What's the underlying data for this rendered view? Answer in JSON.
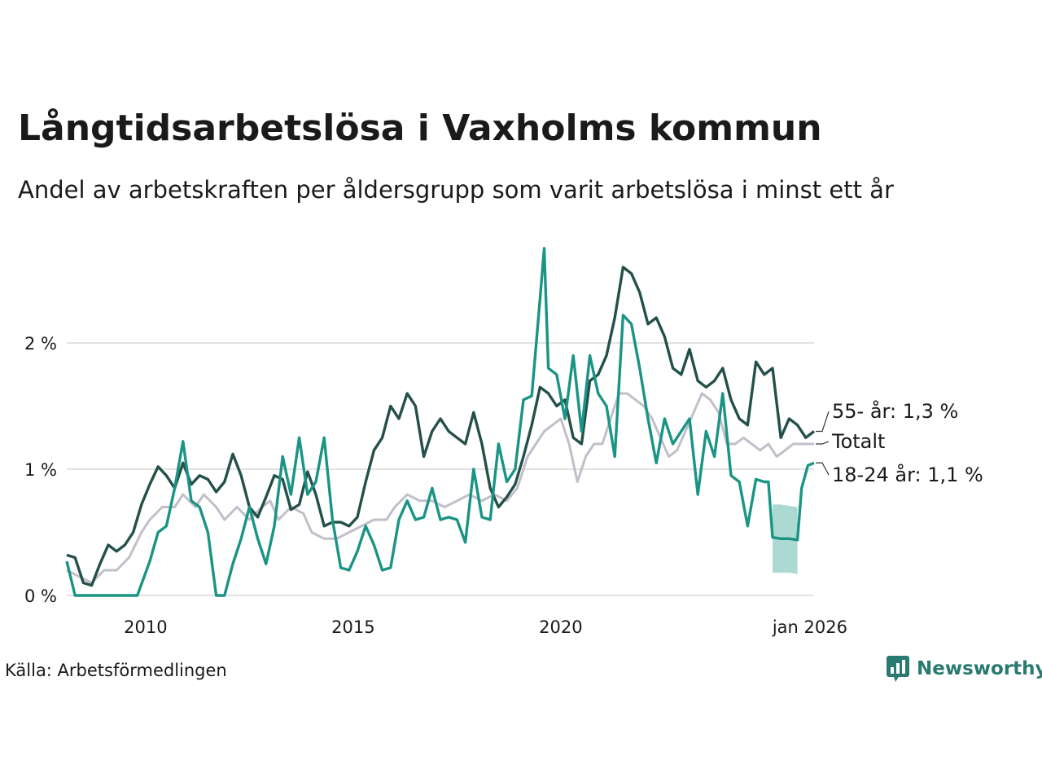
{
  "header": {
    "title": "Långtidsarbetslösa i Vaxholms kommun",
    "subtitle": "Andel av arbetskraften per åldersgrupp som varit arbetslösa i minst ett år"
  },
  "footer": {
    "source": "Källa: Arbetsförmedlingen",
    "brand": "Newsworthy"
  },
  "colors": {
    "older": "#24504a",
    "young": "#1a9484",
    "total": "#c2bfca",
    "band": "#a8d8d0",
    "grid": "#e2e2e2",
    "brand": "#2a7a72"
  },
  "chart_data": {
    "type": "line",
    "title": "Långtidsarbetslösa i Vaxholms kommun",
    "ylim": [
      0,
      2.8
    ],
    "xlim": [
      2008.1,
      2026.1
    ],
    "y_ticks": [
      {
        "value": 0,
        "label": "0 %"
      },
      {
        "value": 1,
        "label": "1 %"
      },
      {
        "value": 2,
        "label": "2 %"
      }
    ],
    "x_ticks": [
      {
        "value": 2010,
        "label": "2010"
      },
      {
        "value": 2015,
        "label": "2015"
      },
      {
        "value": 2020,
        "label": "2020"
      },
      {
        "value": 2026,
        "label": "jan 2026"
      }
    ],
    "series": [
      {
        "name": "Totalt",
        "end_label": "Totalt",
        "color_key": "total",
        "points": [
          [
            2008.1,
            0.2
          ],
          [
            2008.4,
            0.15
          ],
          [
            2008.7,
            0.1
          ],
          [
            2009.0,
            0.2
          ],
          [
            2009.3,
            0.2
          ],
          [
            2009.6,
            0.3
          ],
          [
            2009.9,
            0.5
          ],
          [
            2010.1,
            0.6
          ],
          [
            2010.4,
            0.7
          ],
          [
            2010.7,
            0.7
          ],
          [
            2010.9,
            0.8
          ],
          [
            2011.2,
            0.7
          ],
          [
            2011.4,
            0.8
          ],
          [
            2011.7,
            0.7
          ],
          [
            2011.9,
            0.6
          ],
          [
            2012.2,
            0.7
          ],
          [
            2012.5,
            0.6
          ],
          [
            2012.8,
            0.7
          ],
          [
            2013.0,
            0.75
          ],
          [
            2013.2,
            0.6
          ],
          [
            2013.5,
            0.7
          ],
          [
            2013.8,
            0.65
          ],
          [
            2014.0,
            0.5
          ],
          [
            2014.3,
            0.45
          ],
          [
            2014.6,
            0.45
          ],
          [
            2014.9,
            0.5
          ],
          [
            2015.2,
            0.55
          ],
          [
            2015.5,
            0.6
          ],
          [
            2015.8,
            0.6
          ],
          [
            2016.0,
            0.7
          ],
          [
            2016.3,
            0.8
          ],
          [
            2016.6,
            0.75
          ],
          [
            2016.9,
            0.75
          ],
          [
            2017.2,
            0.7
          ],
          [
            2017.5,
            0.75
          ],
          [
            2017.8,
            0.8
          ],
          [
            2018.1,
            0.75
          ],
          [
            2018.4,
            0.8
          ],
          [
            2018.7,
            0.75
          ],
          [
            2018.95,
            0.85
          ],
          [
            2019.2,
            1.1
          ],
          [
            2019.4,
            1.2
          ],
          [
            2019.6,
            1.3
          ],
          [
            2019.8,
            1.35
          ],
          [
            2020.0,
            1.4
          ],
          [
            2020.2,
            1.2
          ],
          [
            2020.4,
            0.9
          ],
          [
            2020.6,
            1.1
          ],
          [
            2020.8,
            1.2
          ],
          [
            2021.0,
            1.2
          ],
          [
            2021.2,
            1.4
          ],
          [
            2021.4,
            1.6
          ],
          [
            2021.6,
            1.6
          ],
          [
            2021.8,
            1.55
          ],
          [
            2022.0,
            1.5
          ],
          [
            2022.2,
            1.4
          ],
          [
            2022.4,
            1.25
          ],
          [
            2022.6,
            1.1
          ],
          [
            2022.8,
            1.15
          ],
          [
            2023.0,
            1.3
          ],
          [
            2023.2,
            1.45
          ],
          [
            2023.4,
            1.6
          ],
          [
            2023.6,
            1.55
          ],
          [
            2023.8,
            1.45
          ],
          [
            2024.0,
            1.2
          ],
          [
            2024.2,
            1.2
          ],
          [
            2024.4,
            1.25
          ],
          [
            2024.6,
            1.2
          ],
          [
            2024.8,
            1.15
          ],
          [
            2025.0,
            1.2
          ],
          [
            2025.2,
            1.1
          ],
          [
            2025.4,
            1.15
          ],
          [
            2025.6,
            1.2
          ],
          [
            2025.8,
            1.2
          ],
          [
            2026.0,
            1.2
          ],
          [
            2026.1,
            1.2
          ]
        ]
      },
      {
        "name": "55- år",
        "end_label": "55- år: 1,3 %",
        "color_key": "older",
        "points": [
          [
            2008.1,
            0.32
          ],
          [
            2008.3,
            0.3
          ],
          [
            2008.5,
            0.1
          ],
          [
            2008.7,
            0.08
          ],
          [
            2008.9,
            0.25
          ],
          [
            2009.1,
            0.4
          ],
          [
            2009.3,
            0.35
          ],
          [
            2009.5,
            0.4
          ],
          [
            2009.7,
            0.5
          ],
          [
            2009.9,
            0.72
          ],
          [
            2010.1,
            0.88
          ],
          [
            2010.3,
            1.02
          ],
          [
            2010.5,
            0.95
          ],
          [
            2010.7,
            0.85
          ],
          [
            2010.9,
            1.05
          ],
          [
            2011.1,
            0.88
          ],
          [
            2011.3,
            0.95
          ],
          [
            2011.5,
            0.92
          ],
          [
            2011.7,
            0.82
          ],
          [
            2011.9,
            0.9
          ],
          [
            2012.1,
            1.12
          ],
          [
            2012.3,
            0.95
          ],
          [
            2012.5,
            0.7
          ],
          [
            2012.7,
            0.62
          ],
          [
            2012.9,
            0.78
          ],
          [
            2013.1,
            0.95
          ],
          [
            2013.3,
            0.92
          ],
          [
            2013.5,
            0.68
          ],
          [
            2013.7,
            0.72
          ],
          [
            2013.9,
            0.98
          ],
          [
            2014.1,
            0.8
          ],
          [
            2014.3,
            0.55
          ],
          [
            2014.5,
            0.58
          ],
          [
            2014.7,
            0.58
          ],
          [
            2014.9,
            0.55
          ],
          [
            2015.1,
            0.62
          ],
          [
            2015.3,
            0.9
          ],
          [
            2015.5,
            1.15
          ],
          [
            2015.7,
            1.25
          ],
          [
            2015.9,
            1.5
          ],
          [
            2016.1,
            1.4
          ],
          [
            2016.3,
            1.6
          ],
          [
            2016.5,
            1.5
          ],
          [
            2016.7,
            1.1
          ],
          [
            2016.9,
            1.3
          ],
          [
            2017.1,
            1.4
          ],
          [
            2017.3,
            1.3
          ],
          [
            2017.5,
            1.25
          ],
          [
            2017.7,
            1.2
          ],
          [
            2017.9,
            1.45
          ],
          [
            2018.1,
            1.2
          ],
          [
            2018.3,
            0.85
          ],
          [
            2018.5,
            0.7
          ],
          [
            2018.7,
            0.78
          ],
          [
            2018.9,
            0.88
          ],
          [
            2019.1,
            1.1
          ],
          [
            2019.3,
            1.35
          ],
          [
            2019.5,
            1.65
          ],
          [
            2019.7,
            1.6
          ],
          [
            2019.9,
            1.5
          ],
          [
            2020.1,
            1.55
          ],
          [
            2020.3,
            1.25
          ],
          [
            2020.5,
            1.2
          ],
          [
            2020.7,
            1.7
          ],
          [
            2020.9,
            1.75
          ],
          [
            2021.1,
            1.9
          ],
          [
            2021.3,
            2.2
          ],
          [
            2021.5,
            2.6
          ],
          [
            2021.7,
            2.55
          ],
          [
            2021.9,
            2.4
          ],
          [
            2022.1,
            2.15
          ],
          [
            2022.3,
            2.2
          ],
          [
            2022.5,
            2.05
          ],
          [
            2022.7,
            1.8
          ],
          [
            2022.9,
            1.75
          ],
          [
            2023.1,
            1.95
          ],
          [
            2023.3,
            1.7
          ],
          [
            2023.5,
            1.65
          ],
          [
            2023.7,
            1.7
          ],
          [
            2023.9,
            1.8
          ],
          [
            2024.1,
            1.55
          ],
          [
            2024.3,
            1.4
          ],
          [
            2024.5,
            1.35
          ],
          [
            2024.7,
            1.85
          ],
          [
            2024.9,
            1.75
          ],
          [
            2025.1,
            1.8
          ],
          [
            2025.3,
            1.25
          ],
          [
            2025.5,
            1.4
          ],
          [
            2025.7,
            1.35
          ],
          [
            2025.9,
            1.25
          ],
          [
            2026.1,
            1.3
          ]
        ]
      },
      {
        "name": "18-24 år",
        "end_label": "18-24 år: 1,1 %",
        "color_key": "young",
        "points": [
          [
            2008.1,
            0.27
          ],
          [
            2008.3,
            0.0
          ],
          [
            2008.6,
            0.0
          ],
          [
            2008.9,
            0.0
          ],
          [
            2009.2,
            0.0
          ],
          [
            2009.5,
            0.0
          ],
          [
            2009.8,
            0.0
          ],
          [
            2010.1,
            0.27
          ],
          [
            2010.3,
            0.5
          ],
          [
            2010.5,
            0.55
          ],
          [
            2010.7,
            0.85
          ],
          [
            2010.9,
            1.22
          ],
          [
            2011.1,
            0.75
          ],
          [
            2011.3,
            0.7
          ],
          [
            2011.5,
            0.5
          ],
          [
            2011.7,
            0.0
          ],
          [
            2011.9,
            0.0
          ],
          [
            2012.1,
            0.25
          ],
          [
            2012.3,
            0.45
          ],
          [
            2012.5,
            0.7
          ],
          [
            2012.7,
            0.45
          ],
          [
            2012.9,
            0.25
          ],
          [
            2013.1,
            0.55
          ],
          [
            2013.3,
            1.1
          ],
          [
            2013.5,
            0.8
          ],
          [
            2013.7,
            1.25
          ],
          [
            2013.9,
            0.8
          ],
          [
            2014.1,
            0.9
          ],
          [
            2014.3,
            1.25
          ],
          [
            2014.5,
            0.6
          ],
          [
            2014.7,
            0.22
          ],
          [
            2014.9,
            0.2
          ],
          [
            2015.1,
            0.35
          ],
          [
            2015.3,
            0.55
          ],
          [
            2015.5,
            0.4
          ],
          [
            2015.7,
            0.2
          ],
          [
            2015.9,
            0.22
          ],
          [
            2016.1,
            0.6
          ],
          [
            2016.3,
            0.75
          ],
          [
            2016.5,
            0.6
          ],
          [
            2016.7,
            0.62
          ],
          [
            2016.9,
            0.85
          ],
          [
            2017.1,
            0.6
          ],
          [
            2017.3,
            0.62
          ],
          [
            2017.5,
            0.6
          ],
          [
            2017.7,
            0.42
          ],
          [
            2017.9,
            1.0
          ],
          [
            2018.1,
            0.62
          ],
          [
            2018.3,
            0.6
          ],
          [
            2018.5,
            1.2
          ],
          [
            2018.7,
            0.9
          ],
          [
            2018.9,
            1.0
          ],
          [
            2019.1,
            1.55
          ],
          [
            2019.3,
            1.58
          ],
          [
            2019.5,
            2.35
          ],
          [
            2019.6,
            2.75
          ],
          [
            2019.7,
            1.8
          ],
          [
            2019.9,
            1.75
          ],
          [
            2020.1,
            1.4
          ],
          [
            2020.3,
            1.9
          ],
          [
            2020.5,
            1.3
          ],
          [
            2020.7,
            1.9
          ],
          [
            2020.9,
            1.6
          ],
          [
            2021.1,
            1.5
          ],
          [
            2021.3,
            1.1
          ],
          [
            2021.5,
            2.22
          ],
          [
            2021.7,
            2.15
          ],
          [
            2021.9,
            1.8
          ],
          [
            2022.1,
            1.4
          ],
          [
            2022.3,
            1.05
          ],
          [
            2022.5,
            1.4
          ],
          [
            2022.7,
            1.2
          ],
          [
            2022.9,
            1.3
          ],
          [
            2023.1,
            1.4
          ],
          [
            2023.3,
            0.8
          ],
          [
            2023.5,
            1.3
          ],
          [
            2023.7,
            1.1
          ],
          [
            2023.9,
            1.6
          ],
          [
            2024.1,
            0.95
          ],
          [
            2024.3,
            0.9
          ],
          [
            2024.5,
            0.55
          ],
          [
            2024.7,
            0.92
          ],
          [
            2024.9,
            0.9
          ],
          [
            2025.0,
            0.9
          ],
          [
            2025.1,
            0.46
          ],
          [
            2025.3,
            0.45
          ],
          [
            2025.5,
            0.45
          ],
          [
            2025.7,
            0.44
          ],
          [
            2025.8,
            0.85
          ],
          [
            2025.95,
            1.03
          ],
          [
            2026.1,
            1.05
          ]
        ]
      }
    ],
    "uncertainty_band": {
      "series": "18-24 år",
      "points": [
        [
          2025.1,
          0.18,
          0.72
        ],
        [
          2025.3,
          0.18,
          0.72
        ],
        [
          2025.5,
          0.18,
          0.71
        ],
        [
          2025.7,
          0.17,
          0.7
        ]
      ]
    }
  }
}
